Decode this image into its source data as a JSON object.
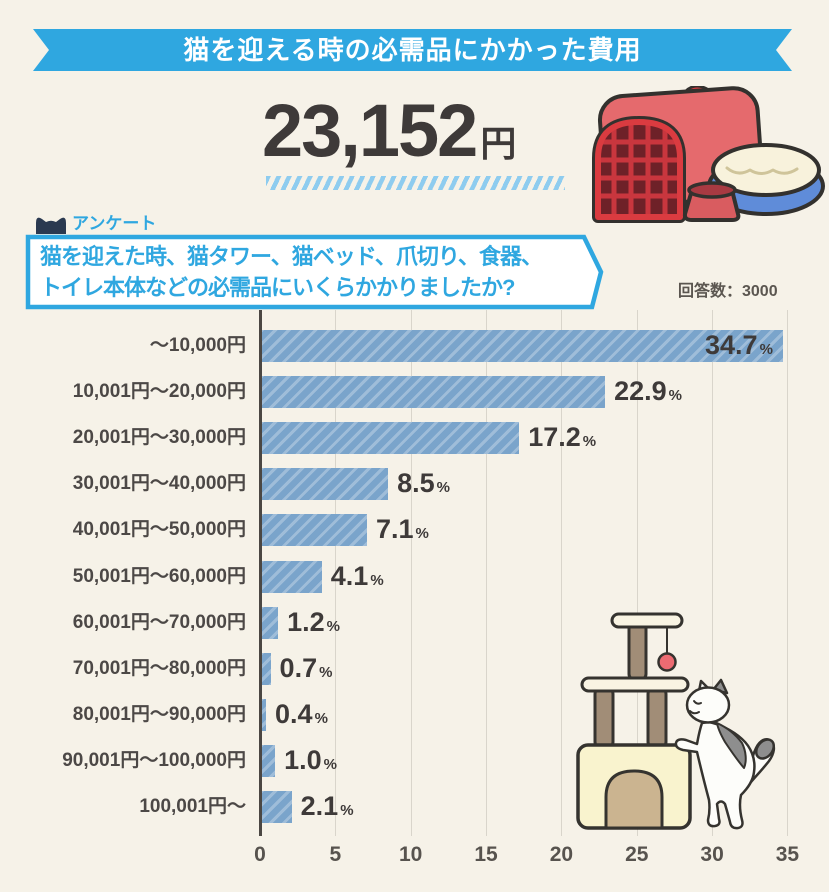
{
  "page": {
    "background_color": "#F6F2E8"
  },
  "header": {
    "title": "猫を迎える時の必需品にかかった費用",
    "ribbon_color": "#2FA7E0",
    "amount": "23,152",
    "amount_unit": "円"
  },
  "survey": {
    "tag_icon": "cat-head-icon",
    "tag_label": "アンケート",
    "question_line1": "猫を迎えた時、猫タワー、猫ベッド、爪切り、食器、",
    "question_line2": "トイレ本体などの必需品にいくらかかりましたか?",
    "responses_label": "回答数：3000",
    "accent_color": "#2FA7E0"
  },
  "illustrations": {
    "top_right": "cat-carrier-bed-bowl-illustration",
    "bottom_right": "cat-tower-with-cat-illustration"
  },
  "chart_data": {
    "type": "bar",
    "orientation": "horizontal",
    "title": "猫を迎える時の必需品にかかった費用",
    "categories": [
      "～10,000円",
      "10,001円～20,000円",
      "20,001円～30,000円",
      "30,001円～40,000円",
      "40,001円～50,000円",
      "50,001円～60,000円",
      "60,001円～70,000円",
      "70,001円～80,000円",
      "80,001円～90,000円",
      "90,001円～100,000円",
      "100,001円～"
    ],
    "values": [
      34.7,
      22.9,
      17.2,
      8.5,
      7.1,
      4.1,
      1.2,
      0.7,
      0.4,
      1.0,
      2.1
    ],
    "value_suffix": "%",
    "xlabel": "",
    "ylabel": "",
    "xlim": [
      0,
      35
    ],
    "xticks": [
      0,
      5,
      10,
      15,
      20,
      25,
      30,
      35
    ],
    "grid": true,
    "legend": false,
    "bar_color": "#7AA4CB",
    "first_value_label_inside_bar": true
  }
}
